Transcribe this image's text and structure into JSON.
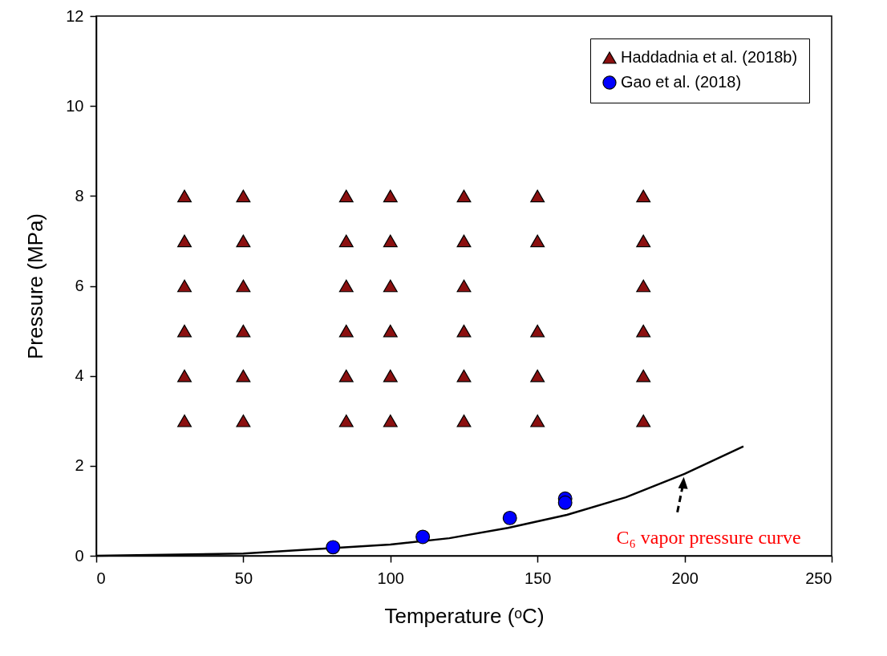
{
  "chart_data": {
    "type": "scatter",
    "xlabel": "Temperature (ᵒC)",
    "ylabel": "Pressure (MPa)",
    "xlim": [
      0,
      250
    ],
    "xticks": [
      0,
      50,
      100,
      150,
      200,
      250
    ],
    "ylim": [
      0,
      12
    ],
    "yticks": [
      0,
      2,
      4,
      6,
      8,
      10,
      12
    ],
    "grid": false,
    "legend": "top right",
    "series": [
      {
        "name": "Haddadnia et al. (2018b)",
        "marker": "triangle",
        "color": "#8b1010",
        "x": [
          30,
          30,
          30,
          30,
          30,
          30,
          50,
          50,
          50,
          50,
          50,
          50,
          85,
          85,
          85,
          85,
          85,
          85,
          100,
          100,
          100,
          100,
          100,
          100,
          125,
          125,
          125,
          125,
          125,
          125,
          150,
          150,
          150,
          150,
          150,
          186,
          186,
          186,
          186,
          186,
          186
        ],
        "values": [
          3,
          4,
          5,
          6,
          7,
          8,
          3,
          4,
          5,
          6,
          7,
          8,
          3,
          4,
          5,
          6,
          7,
          8,
          3,
          4,
          5,
          6,
          7,
          8,
          3,
          4,
          5,
          6,
          7,
          8,
          3,
          4,
          5,
          7,
          8,
          3,
          4,
          5,
          6,
          7,
          8
        ]
      },
      {
        "name": "Gao et al. (2018)",
        "marker": "circle",
        "color": "#0000ff",
        "x": [
          80.5,
          111,
          140.6,
          159.4,
          159.4
        ],
        "values": [
          0.19,
          0.42,
          0.84,
          1.27,
          1.18
        ]
      },
      {
        "type": "line",
        "marker": "none",
        "color": "#000000",
        "x": [
          0,
          50,
          100,
          120,
          140,
          160,
          180,
          200,
          220
        ],
        "values": [
          0,
          0.05,
          0.25,
          0.39,
          0.62,
          0.91,
          1.3,
          1.82,
          2.43
        ]
      }
    ],
    "annotations": [
      {
        "text": "C₆ vapor pressure curve",
        "x": 200,
        "y": 1.86
      }
    ]
  }
}
